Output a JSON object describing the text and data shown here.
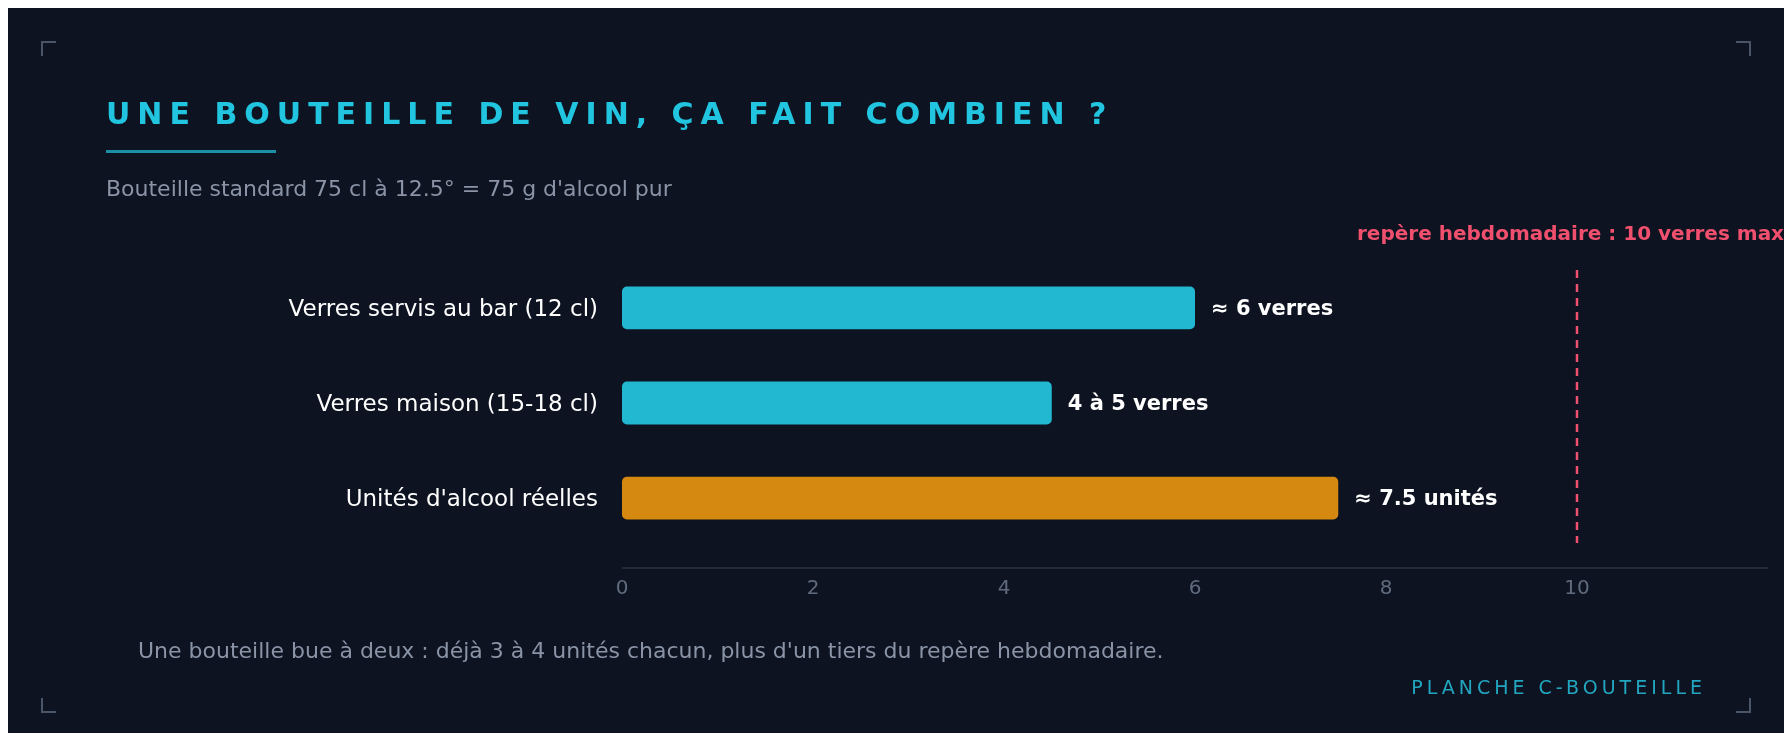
{
  "chart_data": {
    "type": "bar",
    "orientation": "horizontal",
    "title": "UNE BOUTEILLE DE VIN, ÇA FAIT COMBIEN ?",
    "subtitle": "Bouteille standard 75 cl à 12.5° = 75 g d'alcool pur",
    "categories": [
      "Verres servis au bar (12 cl)",
      "Verres maison (15-18 cl)",
      "Unités d'alcool réelles"
    ],
    "values": [
      6,
      4.5,
      7.5
    ],
    "colors": [
      "#22b8d1",
      "#22b8d1",
      "#d68910"
    ],
    "value_labels": [
      "≈ 6 verres",
      "4 à 5 verres",
      "≈ 7.5 unités"
    ],
    "xlim": [
      0,
      12
    ],
    "xticks": [
      0,
      2,
      4,
      6,
      8,
      10
    ],
    "grid": false,
    "ref_lines": [
      {
        "axis": "x",
        "value": 10,
        "label": "repère hebdomadaire : 10 verres max",
        "color": "#f0506e",
        "line_style": "dashed"
      }
    ],
    "annotations": [
      "Une bouteille bue à deux : déjà 3 à 4 unités chacun, plus d'un tiers du repère hebdomadaire.",
      "PLANCHE C-BOUTEILLE"
    ]
  }
}
